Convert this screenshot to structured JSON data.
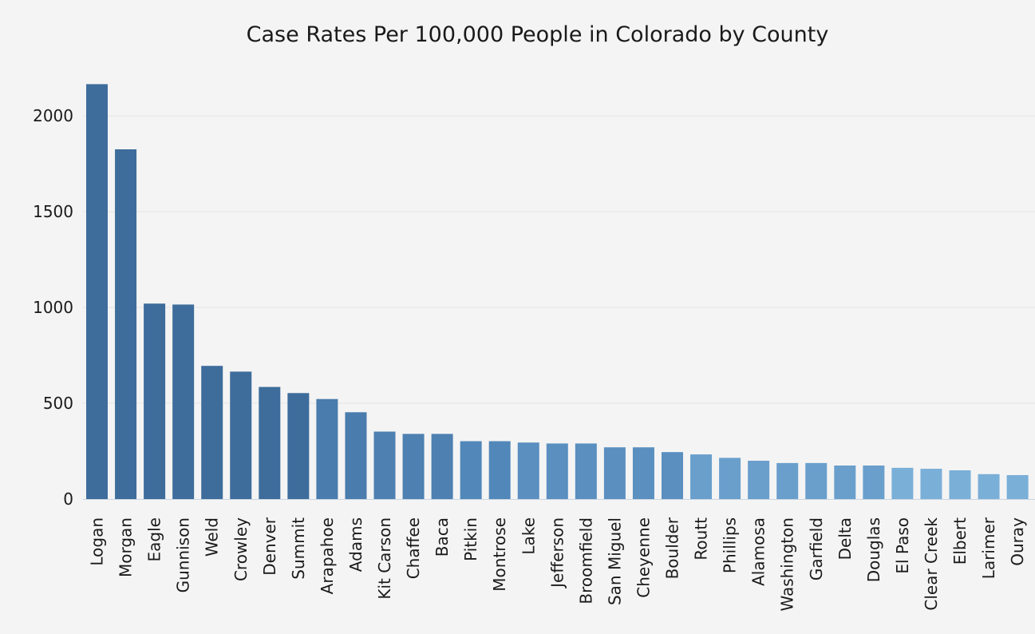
{
  "chart_data": {
    "type": "bar",
    "title": "Case Rates Per 100,000 People in Colorado by County",
    "xlabel": "",
    "ylabel": "",
    "ylim": [
      0,
      2200
    ],
    "yticks": [
      0,
      500,
      1000,
      1500,
      2000
    ],
    "grid": true,
    "categories": [
      "Logan",
      "Morgan",
      "Eagle",
      "Gunnison",
      "Weld",
      "Crowley",
      "Denver",
      "Summit",
      "Arapahoe",
      "Adams",
      "Kit Carson",
      "Chaffee",
      "Baca",
      "Pitkin",
      "Montrose",
      "Lake",
      "Jefferson",
      "Broomfield",
      "San Miguel",
      "Cheyenne",
      "Boulder",
      "Routt",
      "Phillips",
      "Alamosa",
      "Washington",
      "Garfield",
      "Delta",
      "Douglas",
      "El Paso",
      "Clear Creek",
      "Elbert",
      "Larimer",
      "Ouray"
    ],
    "values": [
      2165,
      1825,
      1020,
      1015,
      695,
      665,
      585,
      553,
      522,
      453,
      352,
      340,
      340,
      302,
      302,
      295,
      290,
      290,
      270,
      270,
      245,
      233,
      215,
      200,
      188,
      188,
      175,
      175,
      163,
      158,
      150,
      130,
      125
    ],
    "colors": [
      "#3e6d9c",
      "#3e6d9c",
      "#3e6d9c",
      "#3e6d9c",
      "#3e6d9c",
      "#3e6d9c",
      "#3e6d9c",
      "#3e6d9c",
      "#4a7cad",
      "#4a7cad",
      "#4e80b1",
      "#4e80b1",
      "#4e80b1",
      "#5287b9",
      "#5287b9",
      "#5a8fc0",
      "#5a8fc0",
      "#5a8fc0",
      "#5a8fc0",
      "#5a8fc0",
      "#5a8fc0",
      "#6a9fcc",
      "#6a9fcc",
      "#6a9fcc",
      "#6a9fcc",
      "#6a9fcc",
      "#6a9fcc",
      "#6a9fcc",
      "#7aafd8",
      "#7aafd8",
      "#7aafd8",
      "#7aafd8",
      "#7aafd8"
    ]
  }
}
